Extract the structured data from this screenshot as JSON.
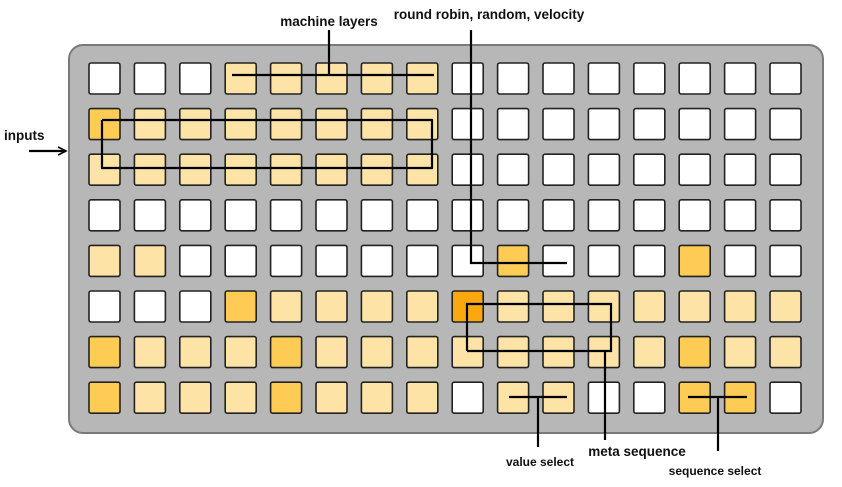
{
  "labels": {
    "machine_layers": "machine layers",
    "round_robin": "round robin, random, velocity",
    "inputs": "inputs",
    "value_select": "value select",
    "meta_sequence": "meta sequence",
    "sequence_select": "sequence select"
  },
  "grid": {
    "columns": 16,
    "rows": 8,
    "cells": [
      "0001111100000000",
      "2111111100000000",
      "1111111100000000",
      "0000000000000000",
      "1100000002000200",
      "0002111131111111",
      "2111211111111211",
      "2111211101100220"
    ]
  },
  "colors": {
    "panel": "#b7b7b7",
    "panel_border": "#7a7a7a",
    "off": "#ffffff",
    "light": "#fde3a6",
    "medium": "#fecb54",
    "strong": "#fba80e",
    "line": "#000000"
  }
}
